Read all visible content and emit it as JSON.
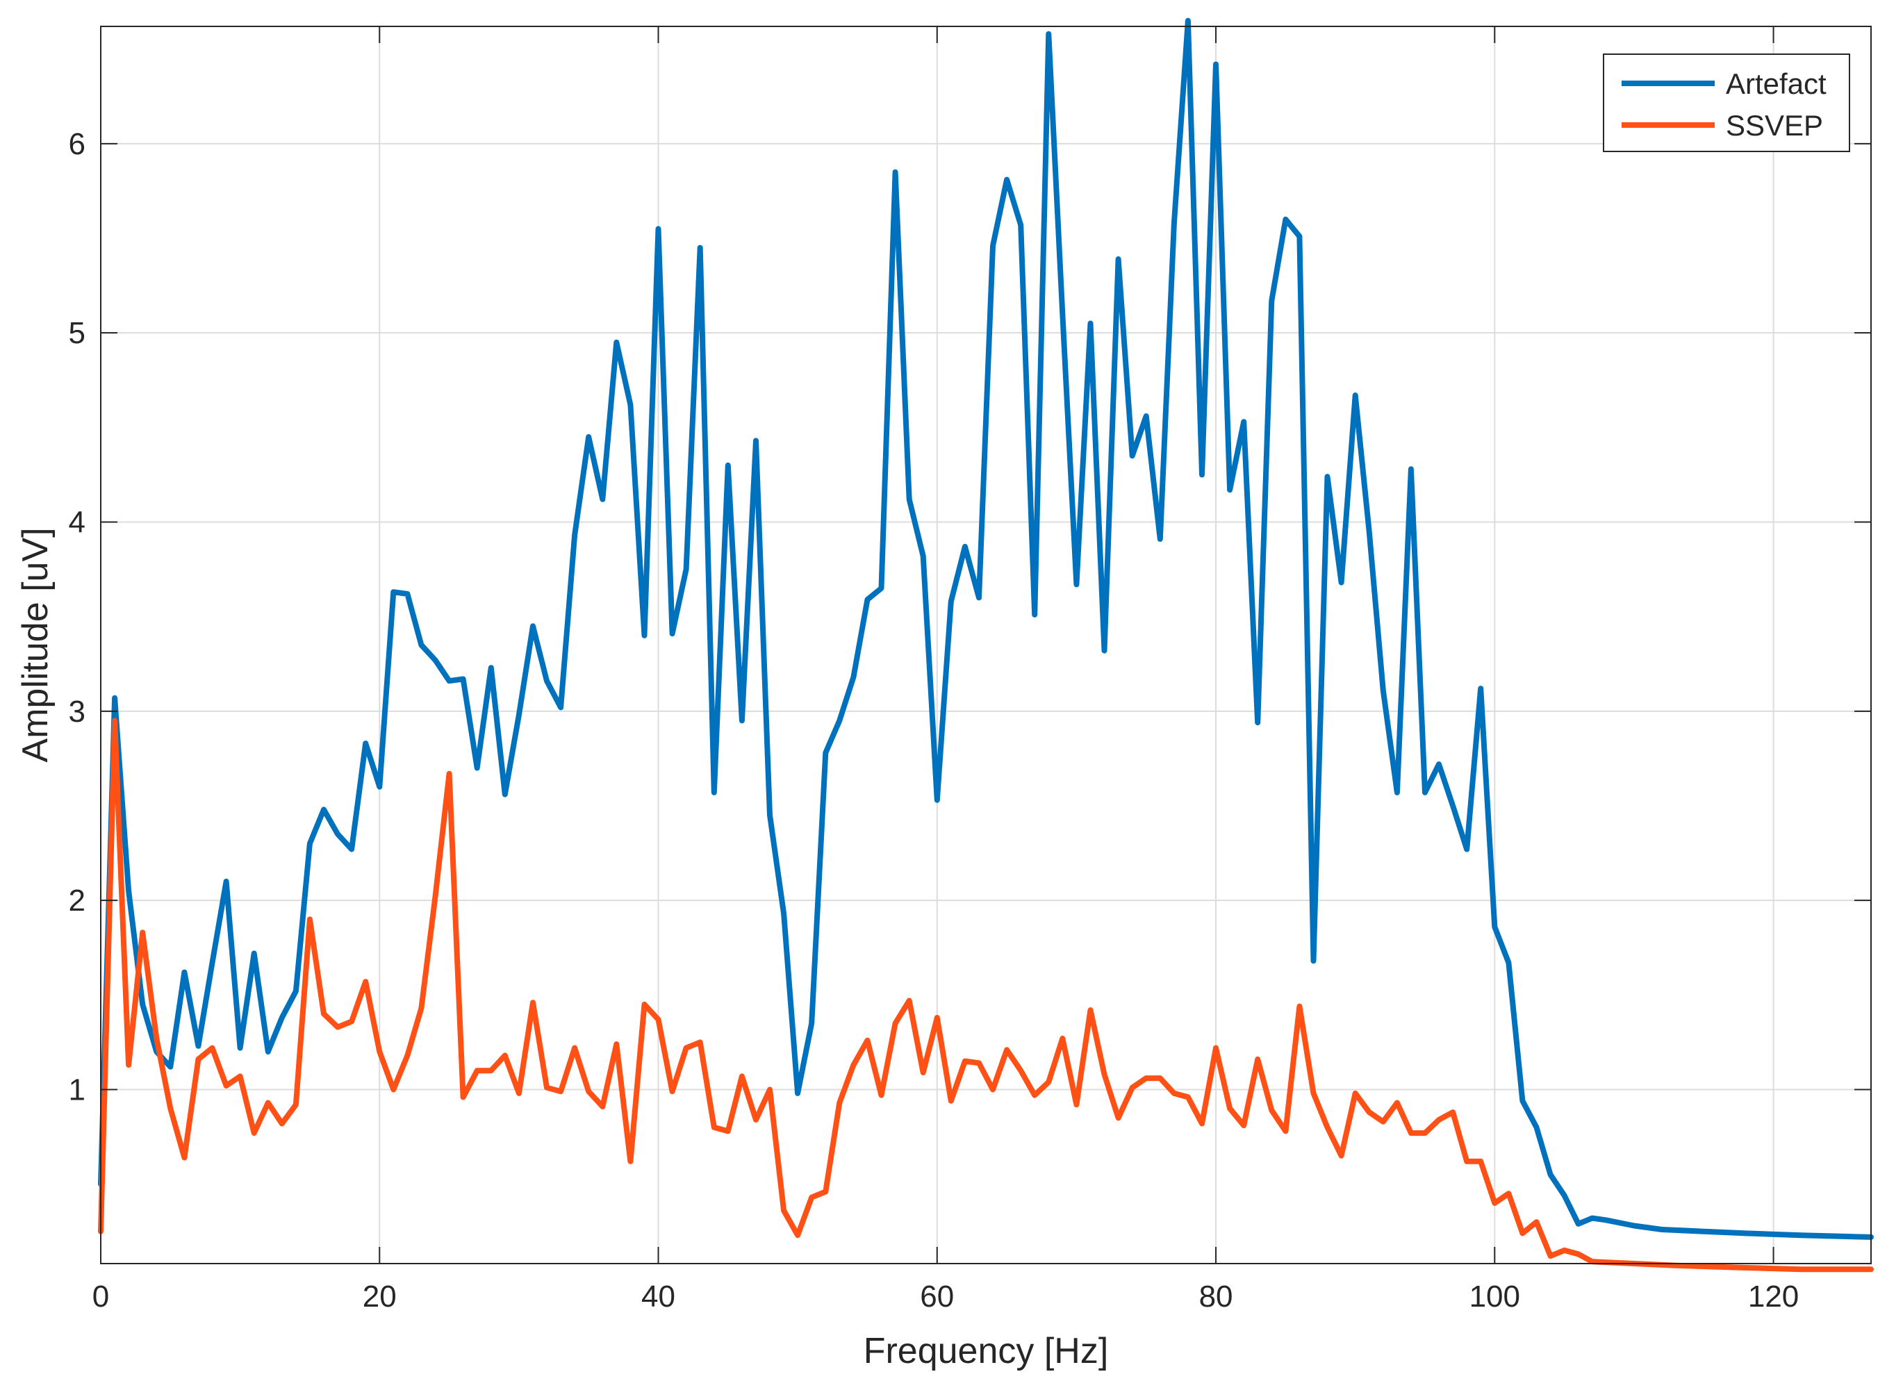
{
  "chart_data": {
    "type": "line",
    "title": "",
    "xlabel": "Frequency [Hz]",
    "ylabel": "Amplitude [uV]",
    "xlim": [
      0,
      127
    ],
    "ylim": [
      0.08,
      6.62
    ],
    "xticks": [
      0,
      20,
      40,
      60,
      80,
      100,
      120
    ],
    "yticks": [
      1,
      2,
      3,
      4,
      5,
      6
    ],
    "xtick_labels": [
      "0",
      "20",
      "40",
      "60",
      "80",
      "100",
      "120"
    ],
    "ytick_labels": [
      "1",
      "2",
      "3",
      "4",
      "5",
      "6"
    ],
    "grid": true,
    "legend_position": "top-right",
    "series": [
      {
        "name": "Artefact",
        "color": "#0072BD",
        "x": [
          0,
          1,
          2,
          3,
          4,
          5,
          6,
          7,
          8,
          9,
          10,
          11,
          12,
          13,
          14,
          15,
          16,
          17,
          18,
          19,
          20,
          21,
          22,
          23,
          24,
          25,
          26,
          27,
          28,
          29,
          30,
          31,
          32,
          33,
          34,
          35,
          36,
          37,
          38,
          39,
          40,
          41,
          42,
          43,
          44,
          45,
          46,
          47,
          48,
          49,
          50,
          51,
          52,
          53,
          54,
          55,
          56,
          57,
          58,
          59,
          60,
          61,
          62,
          63,
          64,
          65,
          66,
          67,
          68,
          69,
          70,
          71,
          72,
          73,
          74,
          75,
          76,
          77,
          78,
          79,
          80,
          81,
          82,
          83,
          84,
          85,
          86,
          87,
          88,
          89,
          90,
          91,
          92,
          93,
          94,
          95,
          96,
          97,
          98,
          99,
          100,
          101,
          102,
          103,
          104,
          105,
          106,
          107,
          108,
          110,
          112,
          115,
          118,
          122,
          127
        ],
        "values": [
          0.5,
          3.07,
          2.05,
          1.45,
          1.2,
          1.12,
          1.62,
          1.23,
          1.67,
          2.1,
          1.22,
          1.72,
          1.2,
          1.38,
          1.52,
          2.3,
          2.48,
          2.35,
          2.27,
          2.83,
          2.6,
          3.63,
          3.62,
          3.35,
          3.27,
          3.16,
          3.17,
          2.7,
          3.23,
          2.56,
          2.98,
          3.45,
          3.16,
          3.02,
          3.93,
          4.45,
          4.12,
          4.95,
          4.62,
          3.4,
          5.55,
          3.41,
          3.75,
          5.45,
          2.57,
          4.3,
          2.95,
          4.43,
          2.45,
          1.93,
          0.98,
          1.35,
          2.78,
          2.95,
          3.18,
          3.59,
          3.65,
          5.85,
          4.12,
          3.82,
          2.53,
          3.58,
          3.87,
          3.6,
          5.46,
          5.81,
          5.57,
          3.51,
          6.58,
          5.1,
          3.67,
          5.05,
          3.32,
          5.39,
          4.35,
          4.56,
          3.91,
          5.58,
          6.65,
          4.25,
          6.42,
          4.17,
          4.53,
          2.94,
          5.17,
          5.6,
          5.51,
          1.68,
          4.24,
          3.68,
          4.67,
          3.95,
          3.11,
          2.57,
          4.28,
          2.57,
          2.72,
          2.5,
          2.27,
          3.12,
          1.86,
          1.67,
          0.94,
          0.8,
          0.55,
          0.44,
          0.29,
          0.32,
          0.31,
          0.28,
          0.26,
          0.25,
          0.24,
          0.23,
          0.22
        ]
      },
      {
        "name": "SSVEP",
        "color": "#FF5015",
        "x": [
          0,
          1,
          2,
          3,
          4,
          5,
          6,
          7,
          8,
          9,
          10,
          11,
          12,
          13,
          14,
          15,
          16,
          17,
          18,
          19,
          20,
          21,
          22,
          23,
          24,
          25,
          26,
          27,
          28,
          29,
          30,
          31,
          32,
          33,
          34,
          35,
          36,
          37,
          38,
          39,
          40,
          41,
          42,
          43,
          44,
          45,
          46,
          47,
          48,
          49,
          50,
          51,
          52,
          53,
          54,
          55,
          56,
          57,
          58,
          59,
          60,
          61,
          62,
          63,
          64,
          65,
          66,
          67,
          68,
          69,
          70,
          71,
          72,
          73,
          74,
          75,
          76,
          77,
          78,
          79,
          80,
          81,
          82,
          83,
          84,
          85,
          86,
          87,
          88,
          89,
          90,
          91,
          92,
          93,
          94,
          95,
          96,
          97,
          98,
          99,
          100,
          101,
          102,
          103,
          104,
          105,
          106,
          107,
          110,
          113,
          117,
          122,
          127
        ],
        "values": [
          0.25,
          2.95,
          1.13,
          1.83,
          1.27,
          0.9,
          0.64,
          1.16,
          1.22,
          1.02,
          1.07,
          0.77,
          0.93,
          0.82,
          0.92,
          1.9,
          1.4,
          1.33,
          1.36,
          1.57,
          1.2,
          1.0,
          1.18,
          1.43,
          2.02,
          2.67,
          0.96,
          1.1,
          1.1,
          1.18,
          0.98,
          1.46,
          1.01,
          0.99,
          1.22,
          0.99,
          0.91,
          1.24,
          0.62,
          1.45,
          1.37,
          0.99,
          1.22,
          1.25,
          0.8,
          0.78,
          1.07,
          0.84,
          1.0,
          0.36,
          0.23,
          0.43,
          0.46,
          0.93,
          1.13,
          1.26,
          0.97,
          1.35,
          1.47,
          1.09,
          1.38,
          0.94,
          1.15,
          1.14,
          1.0,
          1.21,
          1.1,
          0.97,
          1.04,
          1.27,
          0.92,
          1.42,
          1.08,
          0.85,
          1.01,
          1.06,
          1.06,
          0.98,
          0.96,
          0.82,
          1.22,
          0.9,
          0.81,
          1.16,
          0.89,
          0.78,
          1.44,
          0.98,
          0.8,
          0.65,
          0.98,
          0.88,
          0.83,
          0.93,
          0.77,
          0.77,
          0.84,
          0.88,
          0.62,
          0.62,
          0.4,
          0.45,
          0.24,
          0.3,
          0.12,
          0.15,
          0.13,
          0.09,
          0.08,
          0.07,
          0.06,
          0.05,
          0.05
        ]
      }
    ]
  }
}
